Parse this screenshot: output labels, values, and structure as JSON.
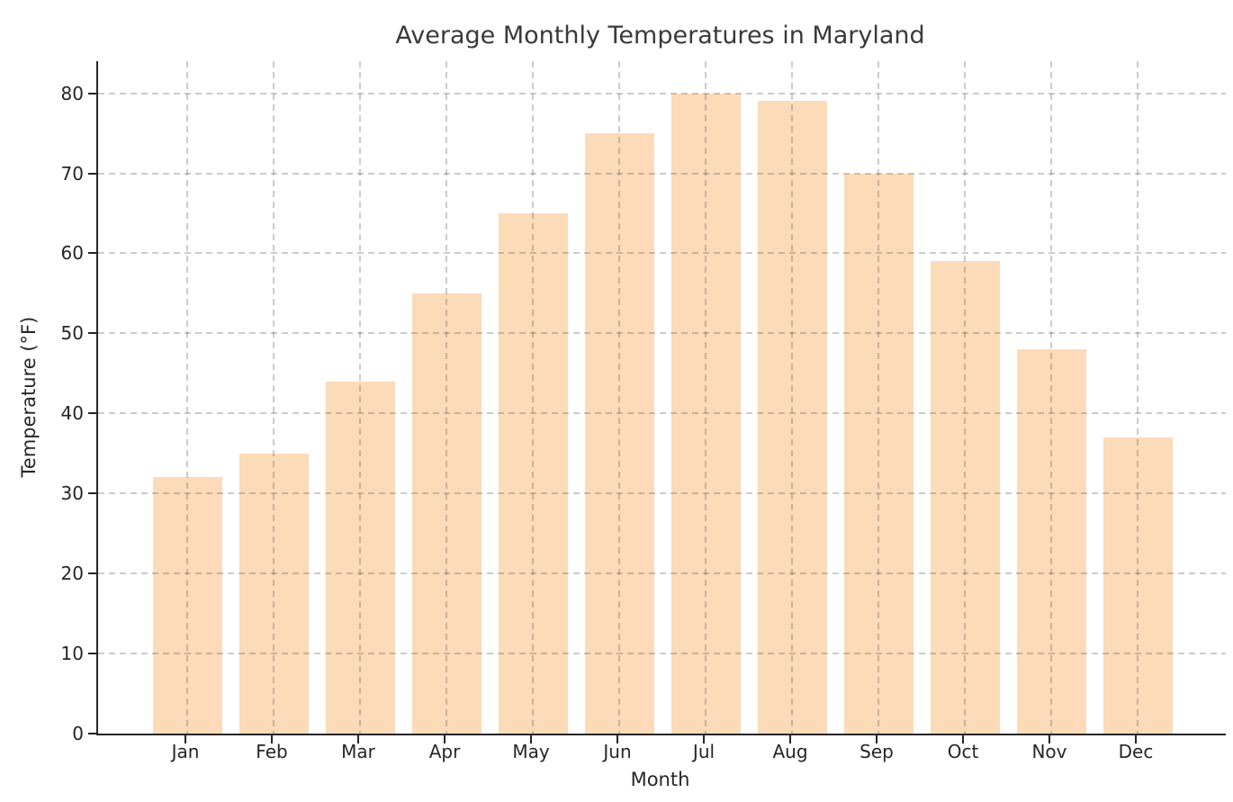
{
  "chart_data": {
    "type": "bar",
    "title": "Average Monthly Temperatures in Maryland",
    "xlabel": "Month",
    "ylabel": "Temperature (°F)",
    "categories": [
      "Jan",
      "Feb",
      "Mar",
      "Apr",
      "May",
      "Jun",
      "Jul",
      "Aug",
      "Sep",
      "Oct",
      "Nov",
      "Dec"
    ],
    "values": [
      32,
      35,
      44,
      55,
      65,
      75,
      80,
      79,
      70,
      59,
      48,
      37
    ],
    "yticks": [
      0,
      10,
      20,
      30,
      40,
      50,
      60,
      70,
      80
    ],
    "ylim": [
      0,
      84
    ],
    "grid": "dashed-both-axes-over-bars",
    "legend": "none",
    "colors": {
      "bar": "#FCDBB8",
      "axis": "#262626",
      "grid": "#c9c9c9",
      "title": "#3a3a3a",
      "background": "#ffffff"
    }
  }
}
